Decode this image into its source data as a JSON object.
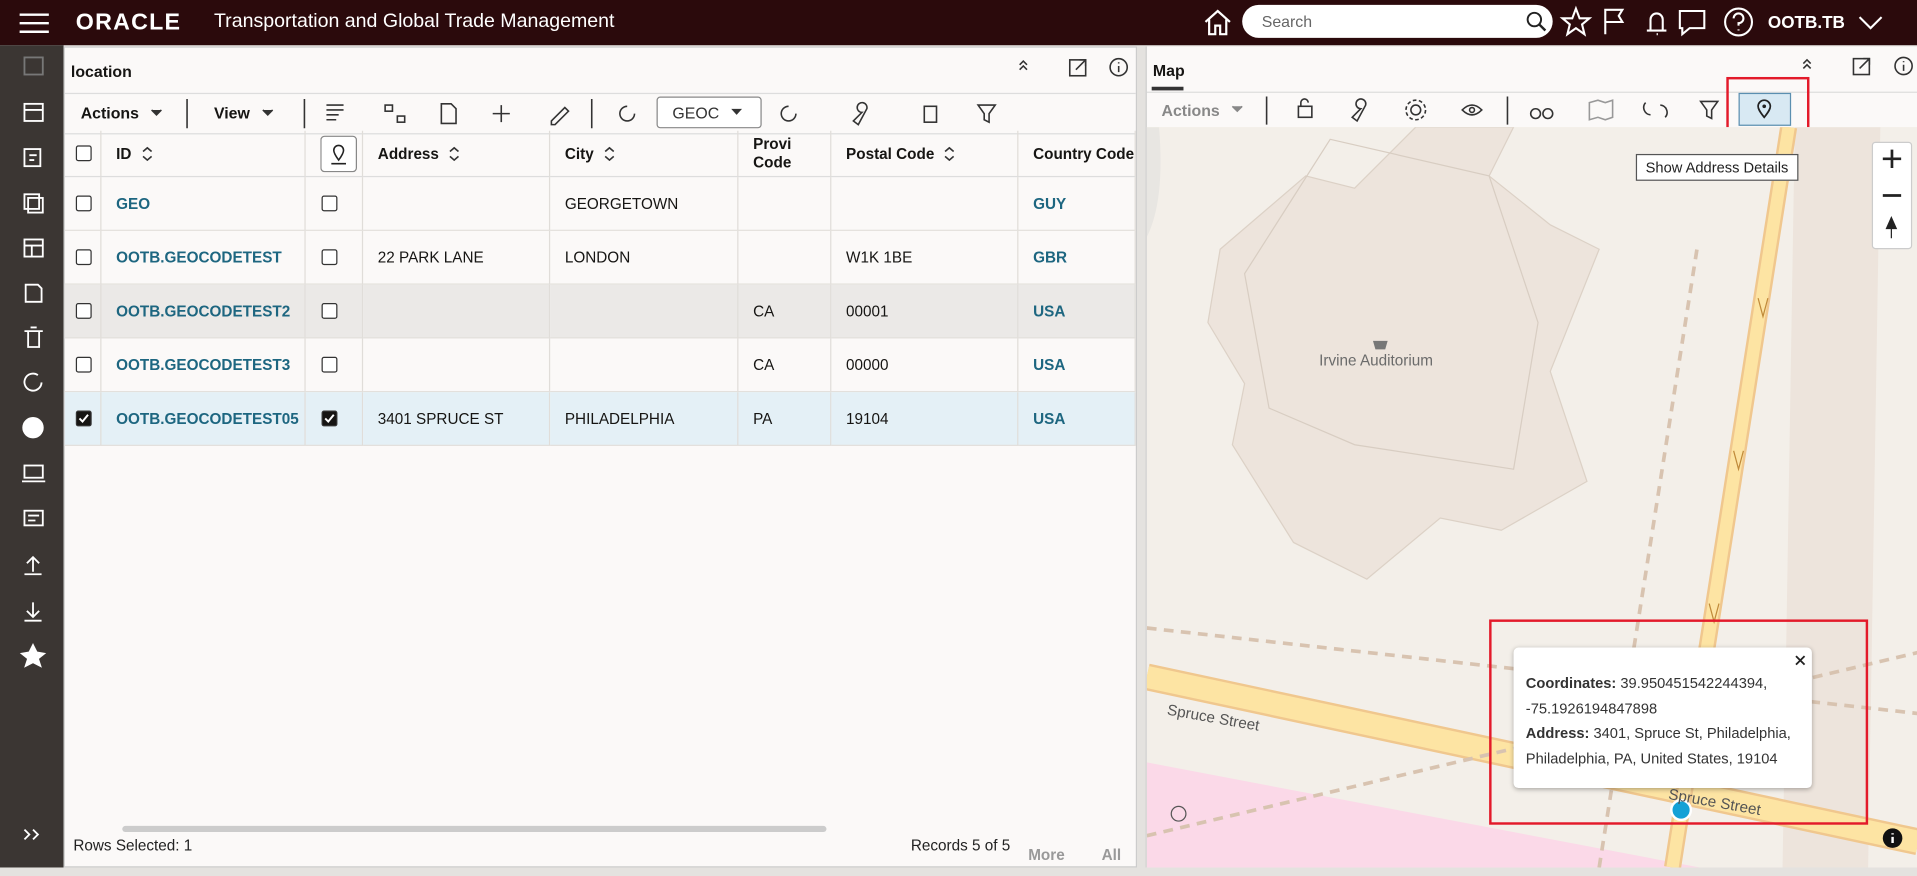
{
  "header": {
    "logo": "ORACLE",
    "app_title": "Transportation and Global Trade Management",
    "search_placeholder": "Search",
    "user": "OOTB.TB"
  },
  "location_panel": {
    "title": "location",
    "actions": "Actions",
    "view": "View",
    "finder": "GEOC",
    "columns": [
      "ID",
      "Address",
      "City",
      "Provi Code",
      "Postal Code",
      "Country Code"
    ],
    "rows": [
      {
        "cells": [
          "GEO",
          "",
          "GEORGETOWN",
          "",
          "",
          "GUY"
        ],
        "checked": false,
        "state": "normal"
      },
      {
        "cells": [
          "OOTB.GEOCODETEST",
          "22 PARK LANE",
          "LONDON",
          "",
          "W1K 1BE",
          "GBR"
        ],
        "checked": false,
        "state": "normal"
      },
      {
        "cells": [
          "OOTB.GEOCODETEST2",
          "",
          "",
          "CA",
          "00001",
          "USA"
        ],
        "checked": false,
        "state": "hover"
      },
      {
        "cells": [
          "OOTB.GEOCODETEST3",
          "",
          "",
          "CA",
          "00000",
          "USA"
        ],
        "checked": false,
        "state": "normal"
      },
      {
        "cells": [
          "OOTB.GEOCODETEST05",
          "3401 SPRUCE ST",
          "PHILADELPHIA",
          "PA",
          "19104",
          "USA"
        ],
        "checked": true,
        "state": "selected"
      }
    ],
    "rows_selected": "Rows Selected: 1",
    "records": "Records 5 of 5",
    "more": "More",
    "all": "All"
  },
  "map_panel": {
    "title": "Map",
    "actions": "Actions",
    "tooltip": "Show Address Details",
    "labels": {
      "building": "Irvine Auditorium",
      "street_1": "Spruce Street",
      "street_2": "Spruce Street"
    },
    "popup": {
      "coordinates_label": "Coordinates:",
      "coordinates_value": "39.950451542244394, -75.1926194847898",
      "address_label": "Address:",
      "address_value": "3401, Spruce St, Philadelphia, Philadelphia, PA, United States, 19104"
    }
  }
}
